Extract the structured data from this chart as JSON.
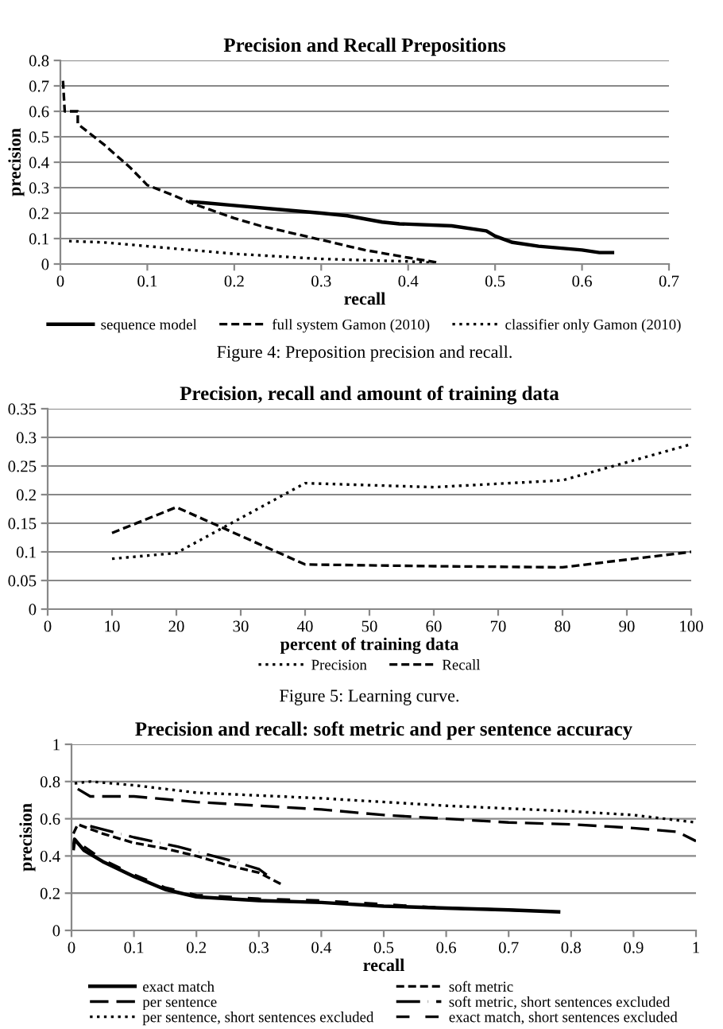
{
  "chart_data": [
    {
      "type": "line",
      "title": "Precision and Recall Prepositions",
      "xlabel": "recall",
      "ylabel": "precision",
      "xlim": [
        0,
        0.7
      ],
      "xticks": [
        0,
        0.1,
        0.2,
        0.3,
        0.4,
        0.5,
        0.6,
        0.7
      ],
      "ylim": [
        0,
        0.8
      ],
      "yticks": [
        0,
        0.1,
        0.2,
        0.3,
        0.4,
        0.5,
        0.6,
        0.7,
        0.8
      ],
      "grid": "y",
      "legend": "bottom",
      "marker": "none",
      "annotations": [
        "Figure 4: Preposition precision and recall."
      ],
      "series": [
        {
          "name": "sequence model",
          "color": "#000000",
          "line_style": "solid",
          "x": [
            0.15,
            0.2,
            0.25,
            0.3,
            0.33,
            0.37,
            0.39,
            0.45,
            0.49,
            0.5,
            0.52,
            0.55,
            0.6,
            0.62,
            0.635
          ],
          "values": [
            0.245,
            0.23,
            0.215,
            0.2,
            0.19,
            0.165,
            0.158,
            0.15,
            0.13,
            0.11,
            0.085,
            0.07,
            0.055,
            0.045,
            0.045
          ]
        },
        {
          "name": "full system Gamon (2010)",
          "color": "#000000",
          "line_style": "dashed",
          "x": [
            0.003,
            0.005,
            0.02,
            0.02,
            0.05,
            0.08,
            0.1,
            0.13,
            0.15,
            0.2,
            0.23,
            0.3,
            0.35,
            0.4,
            0.435
          ],
          "values": [
            0.72,
            0.6,
            0.6,
            0.55,
            0.47,
            0.38,
            0.31,
            0.27,
            0.24,
            0.18,
            0.15,
            0.095,
            0.055,
            0.025,
            0.005
          ]
        },
        {
          "name": "classifier only Gamon (2010)",
          "color": "#000000",
          "line_style": "dotted",
          "x": [
            0.01,
            0.05,
            0.1,
            0.2,
            0.3,
            0.4,
            0.43
          ],
          "values": [
            0.09,
            0.085,
            0.07,
            0.04,
            0.02,
            0.01,
            0.005
          ]
        }
      ]
    },
    {
      "type": "line",
      "title": "Precision, recall and amount of training data",
      "xlabel": "percent of training data",
      "xlim": [
        0,
        100
      ],
      "xticks": [
        0,
        10,
        20,
        30,
        40,
        50,
        60,
        70,
        80,
        90,
        100
      ],
      "ylim": [
        0,
        0.35
      ],
      "yticks": [
        0,
        0.05,
        0.1,
        0.15,
        0.2,
        0.25,
        0.3,
        0.35
      ],
      "grid": "y",
      "legend": "bottom",
      "marker": "none",
      "annotations": [
        "Figure 5: Learning curve."
      ],
      "series": [
        {
          "name": "Precision",
          "color": "#000000",
          "line_style": "dotted",
          "x": [
            10,
            20,
            40,
            60,
            80,
            100
          ],
          "values": [
            0.088,
            0.098,
            0.22,
            0.213,
            0.225,
            0.288
          ]
        },
        {
          "name": "Recall",
          "color": "#000000",
          "line_style": "dashed",
          "x": [
            10,
            20,
            40,
            60,
            80,
            100
          ],
          "values": [
            0.133,
            0.178,
            0.078,
            0.075,
            0.073,
            0.1
          ]
        }
      ]
    },
    {
      "type": "line",
      "title": "Precision and recall: soft metric and per sentence accuracy",
      "xlabel": "recall",
      "ylabel": "precision",
      "xlim": [
        0,
        1
      ],
      "xticks": [
        0,
        0.1,
        0.2,
        0.3,
        0.4,
        0.5,
        0.6,
        0.7,
        0.8,
        0.9,
        1
      ],
      "ylim": [
        0,
        1
      ],
      "yticks": [
        0,
        0.2,
        0.4,
        0.6,
        0.8,
        1
      ],
      "grid": "y",
      "legend": "bottom",
      "marker": "none",
      "series": [
        {
          "name": "exact match",
          "color": "#000000",
          "line_style": "solid",
          "x": [
            0.003,
            0.005,
            0.02,
            0.05,
            0.1,
            0.15,
            0.2,
            0.3,
            0.4,
            0.5,
            0.6,
            0.7,
            0.78
          ],
          "values": [
            0.44,
            0.49,
            0.43,
            0.37,
            0.29,
            0.22,
            0.18,
            0.16,
            0.15,
            0.13,
            0.12,
            0.11,
            0.1
          ]
        },
        {
          "name": "soft metric",
          "color": "#000000",
          "line_style": "dashed",
          "x": [
            0.003,
            0.01,
            0.05,
            0.1,
            0.15,
            0.2,
            0.25,
            0.3,
            0.335
          ],
          "values": [
            0.52,
            0.57,
            0.52,
            0.47,
            0.44,
            0.4,
            0.35,
            0.31,
            0.25
          ]
        },
        {
          "name": "per sentence",
          "color": "#000000",
          "line_style": "dashed",
          "x": [
            0.01,
            0.03,
            0.1,
            0.2,
            0.3,
            0.4,
            0.5,
            0.6,
            0.7,
            0.8,
            0.9,
            0.97,
            1
          ],
          "values": [
            0.76,
            0.72,
            0.72,
            0.69,
            0.67,
            0.65,
            0.62,
            0.6,
            0.58,
            0.57,
            0.55,
            0.53,
            0.48
          ]
        },
        {
          "name": "soft metric, short sentences excluded",
          "color": "#000000",
          "line_style": "dashed",
          "x": [
            0.03,
            0.1,
            0.17,
            0.25,
            0.3,
            0.32
          ],
          "values": [
            0.56,
            0.5,
            0.45,
            0.38,
            0.33,
            0.28
          ]
        },
        {
          "name": "per sentence, short sentences excluded",
          "color": "#000000",
          "line_style": "dotted",
          "x": [
            0.005,
            0.03,
            0.1,
            0.2,
            0.4,
            0.6,
            0.8,
            0.9,
            1
          ],
          "values": [
            0.79,
            0.8,
            0.78,
            0.74,
            0.71,
            0.67,
            0.64,
            0.62,
            0.58
          ]
        },
        {
          "name": "exact match, short sentences excluded",
          "color": "#000000",
          "line_style": "dashed",
          "x": [
            0.02,
            0.05,
            0.1,
            0.15,
            0.2,
            0.3,
            0.4,
            0.5,
            0.6,
            0.7,
            0.78
          ],
          "values": [
            0.45,
            0.38,
            0.3,
            0.23,
            0.19,
            0.17,
            0.16,
            0.14,
            0.12,
            0.11,
            0.1
          ]
        }
      ]
    }
  ]
}
